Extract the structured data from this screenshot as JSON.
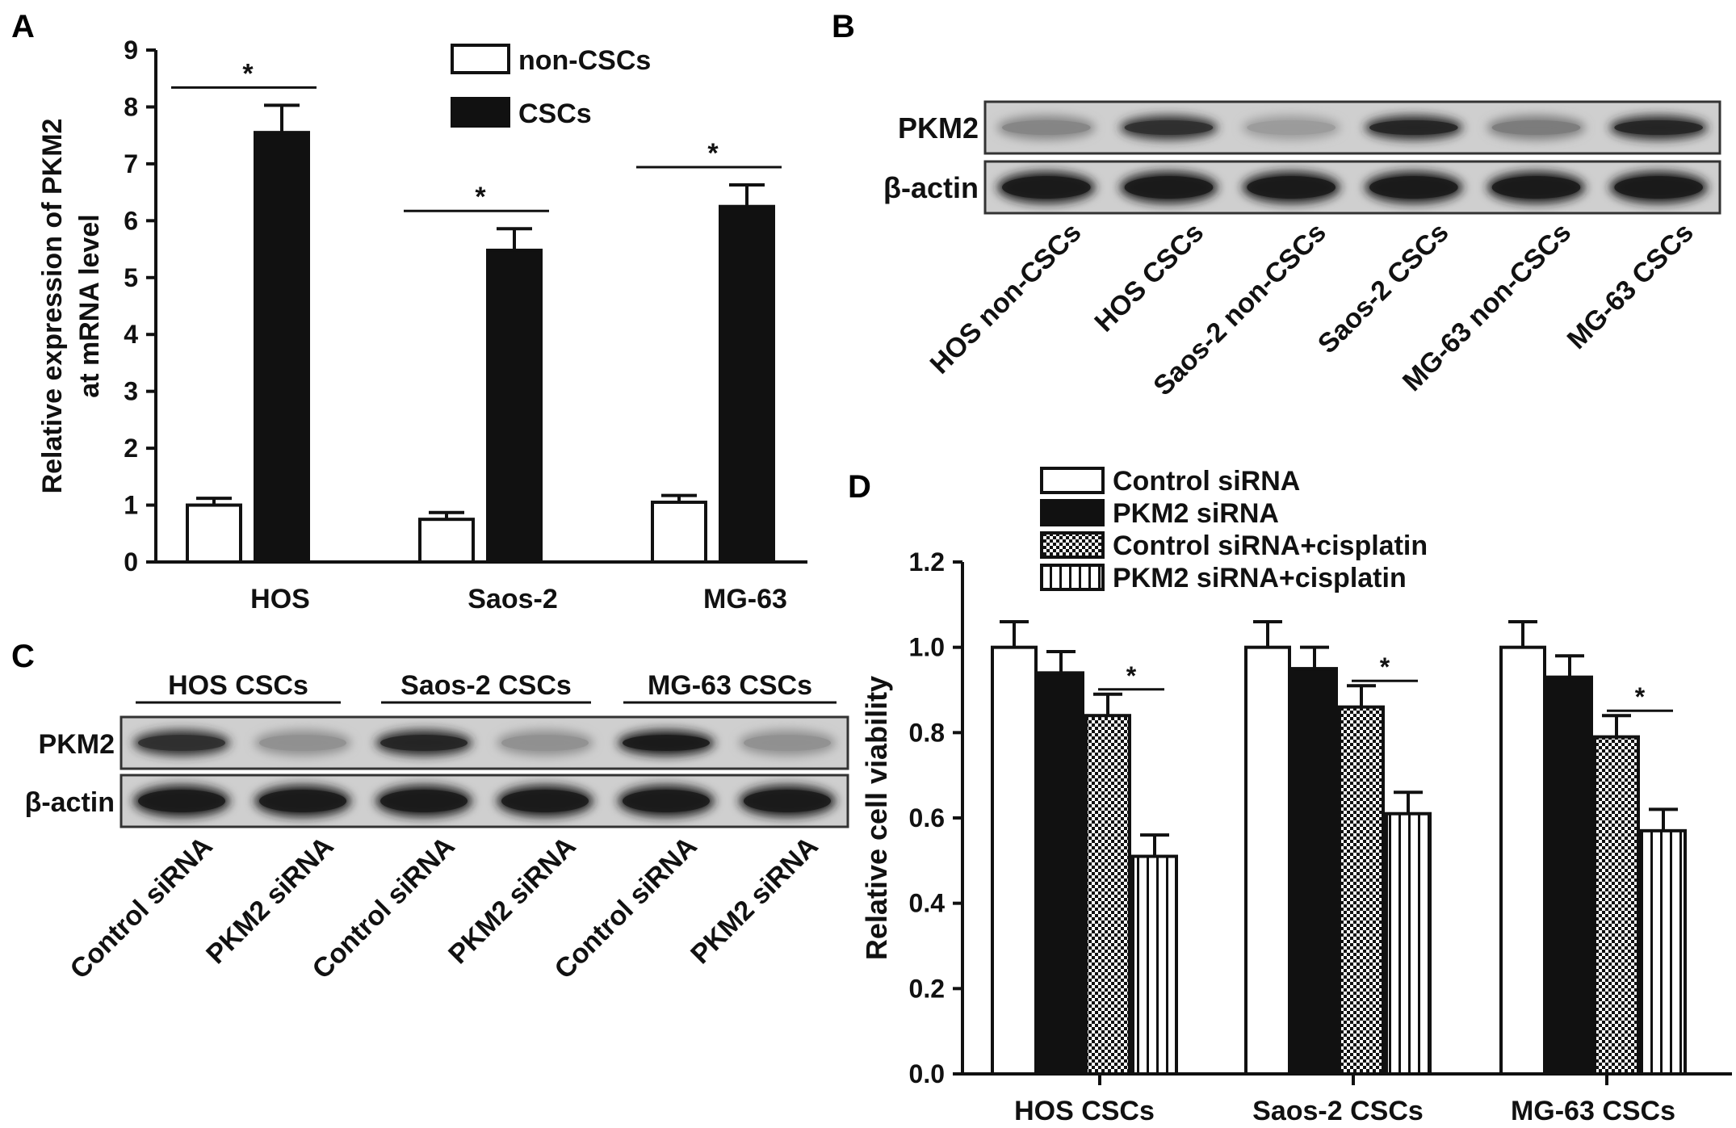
{
  "panels": {
    "A": "A",
    "B": "B",
    "C": "C",
    "D": "D"
  },
  "chart_data": [
    {
      "panel": "A",
      "type": "bar",
      "ylabel_lines": [
        "Relative expression of PKM2",
        "at mRNA level"
      ],
      "categories": [
        "HOS",
        "Saos-2",
        "MG-63"
      ],
      "ylim": [
        0,
        9
      ],
      "yticks": [
        "0",
        "1",
        "2",
        "3",
        "4",
        "5",
        "6",
        "7",
        "8",
        "9"
      ],
      "series": [
        {
          "name": "non-CSCs",
          "fill": "white",
          "values": [
            1.0,
            0.75,
            1.05
          ],
          "errors": [
            0.12,
            0.12,
            0.12
          ]
        },
        {
          "name": "CSCs",
          "fill": "black",
          "values": [
            7.55,
            5.48,
            6.25
          ],
          "errors": [
            0.48,
            0.38,
            0.38
          ]
        }
      ],
      "significance": [
        "*",
        "*",
        "*"
      ],
      "legend_position": "top-right"
    },
    {
      "panel": "D",
      "type": "bar",
      "ylabel": "Relative cell viability",
      "categories": [
        "HOS CSCs",
        "Saos-2 CSCs",
        "MG-63 CSCs"
      ],
      "ylim": [
        0,
        1.2
      ],
      "yticks": [
        "0.0",
        "0.2",
        "0.4",
        "0.6",
        "0.8",
        "1.0",
        "1.2"
      ],
      "series": [
        {
          "name": "Control siRNA",
          "fill": "white",
          "values": [
            1.0,
            1.0,
            1.0
          ],
          "errors": [
            0.06,
            0.06,
            0.06
          ]
        },
        {
          "name": "PKM2 siRNA",
          "fill": "black",
          "values": [
            0.94,
            0.95,
            0.93
          ],
          "errors": [
            0.05,
            0.05,
            0.05
          ]
        },
        {
          "name": "Control siRNA+cisplatin",
          "fill": "checker",
          "values": [
            0.84,
            0.86,
            0.79
          ],
          "errors": [
            0.05,
            0.05,
            0.05
          ]
        },
        {
          "name": "PKM2 siRNA+cisplatin",
          "fill": "vstripe",
          "values": [
            0.51,
            0.61,
            0.57
          ],
          "errors": [
            0.05,
            0.05,
            0.05
          ]
        }
      ],
      "significance": [
        "*",
        "*",
        "*"
      ],
      "legend_position": "top"
    }
  ],
  "blots": {
    "B": {
      "row_labels": [
        "PKM2",
        "β-actin"
      ],
      "lane_labels": [
        "HOS non-CSCs",
        "HOS CSCs",
        "Saos-2 non-CSCs",
        "Saos-2 CSCs",
        "MG-63 non-CSCs",
        "MG-63 CSCs"
      ],
      "pkm2_intensity": [
        0.45,
        0.85,
        0.35,
        0.9,
        0.5,
        0.9
      ],
      "actin_intensity": [
        0.95,
        0.95,
        0.95,
        0.95,
        0.95,
        0.95
      ]
    },
    "C": {
      "group_labels": [
        "HOS CSCs",
        "Saos-2 CSCs",
        "MG-63 CSCs"
      ],
      "row_labels": [
        "PKM2",
        "β-actin"
      ],
      "lane_labels": [
        "Control siRNA",
        "PKM2 siRNA",
        "Control siRNA",
        "PKM2 siRNA",
        "Control siRNA",
        "PKM2 siRNA"
      ],
      "pkm2_intensity": [
        0.85,
        0.4,
        0.9,
        0.4,
        0.95,
        0.4
      ],
      "actin_intensity": [
        0.95,
        0.95,
        0.95,
        0.95,
        0.95,
        0.95
      ]
    }
  }
}
